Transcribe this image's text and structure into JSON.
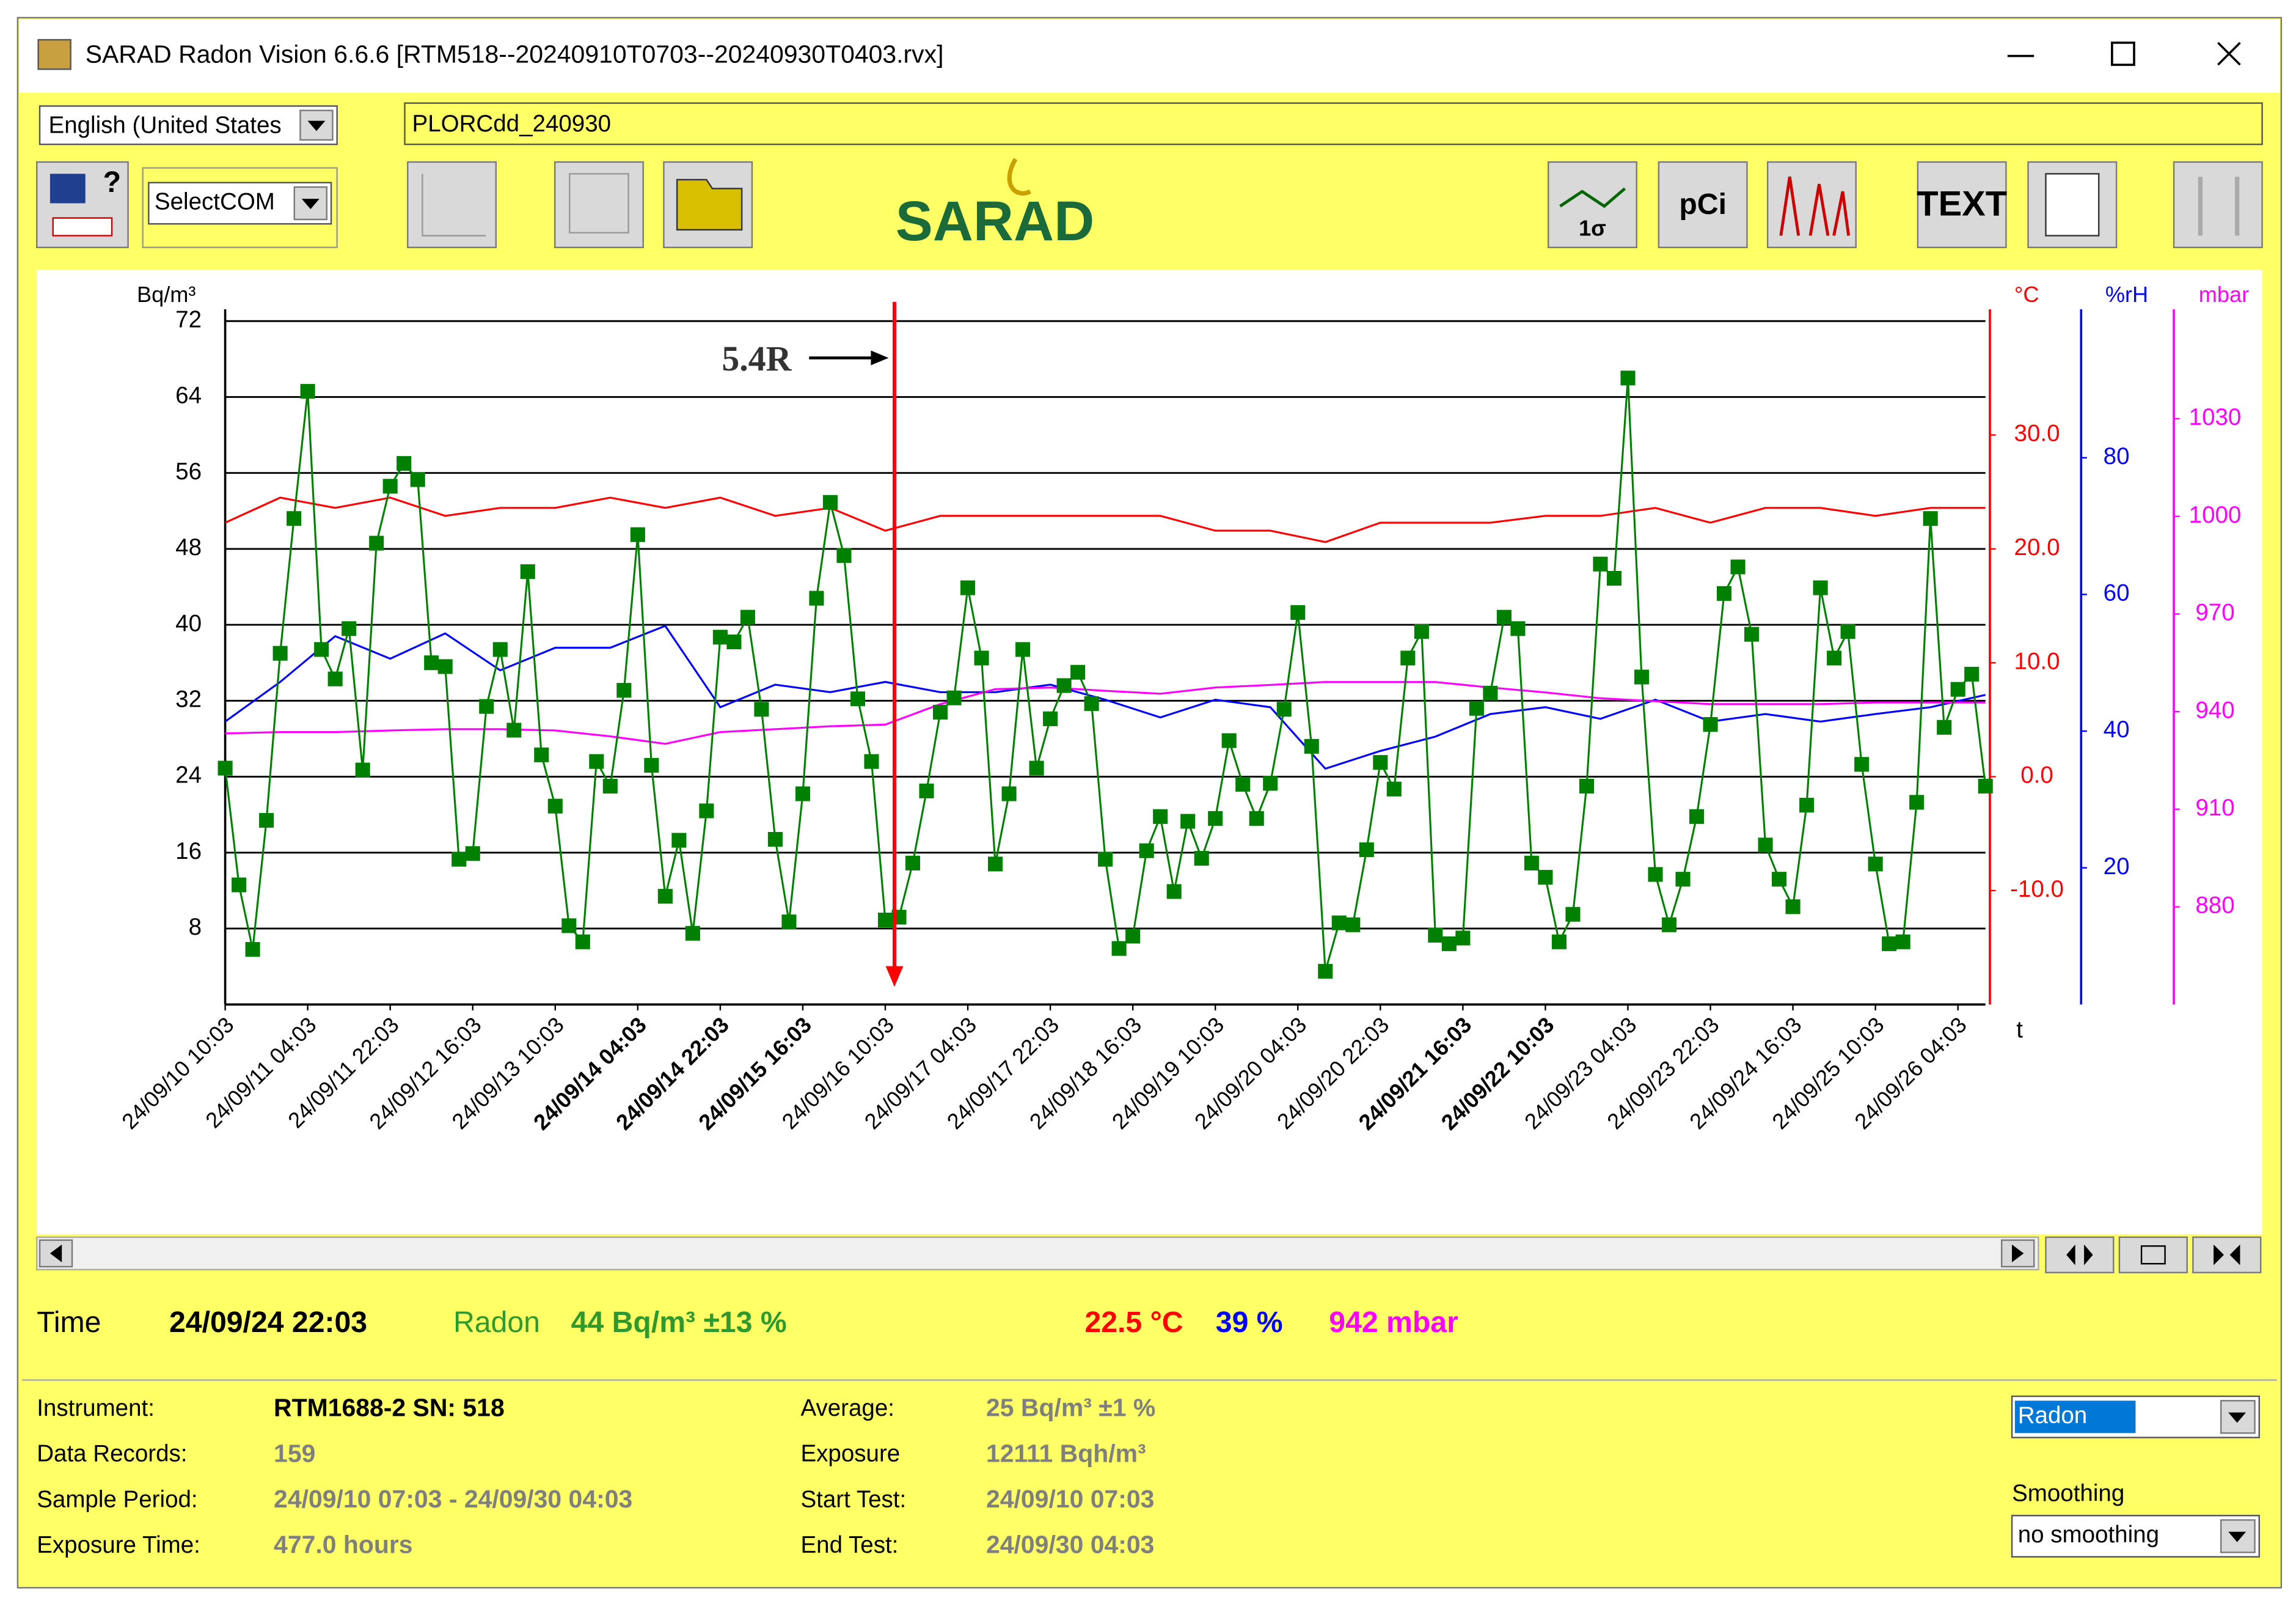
{
  "window": {
    "title": "SARAD Radon Vision 6.6.6 [RTM518--20240910T0703--20240930T0403.rvx]"
  },
  "toolbar": {
    "language": "English (United States",
    "file_name": "PLORCdd_240930",
    "com_port": "SelectCOM",
    "logo": "SARAD",
    "sigma_button": "1σ",
    "unit_button": "pCi",
    "text_button": "TEXT"
  },
  "chart_data": {
    "type": "line",
    "y_label": "Bq/m³",
    "y2_label": "°C",
    "y3_label": "%rH",
    "y4_label": "mbar",
    "x_label": "t",
    "xlim": [
      0,
      384
    ],
    "xticks": [
      {
        "value": 0,
        "label": "24/09/10 10:03"
      },
      {
        "value": 18,
        "label": "24/09/11 04:03"
      },
      {
        "value": 36,
        "label": "24/09/11 22:03"
      },
      {
        "value": 54,
        "label": "24/09/12 16:03"
      },
      {
        "value": 72,
        "label": "24/09/13 10:03"
      },
      {
        "value": 90,
        "label": "24/09/14 04:03"
      },
      {
        "value": 108,
        "label": "24/09/14 22:03"
      },
      {
        "value": 126,
        "label": "24/09/15 16:03"
      },
      {
        "value": 144,
        "label": "24/09/16 10:03"
      },
      {
        "value": 162,
        "label": "24/09/17 04:03"
      },
      {
        "value": 180,
        "label": "24/09/17 22:03"
      },
      {
        "value": 198,
        "label": "24/09/18 16:03"
      },
      {
        "value": 216,
        "label": "24/09/19 10:03"
      },
      {
        "value": 234,
        "label": "24/09/20 04:03"
      },
      {
        "value": 252,
        "label": "24/09/20 22:03"
      },
      {
        "value": 270,
        "label": "24/09/21 16:03"
      },
      {
        "value": 288,
        "label": "24/09/22 10:03"
      },
      {
        "value": 306,
        "label": "24/09/23 04:03"
      },
      {
        "value": 324,
        "label": "24/09/23 22:03"
      },
      {
        "value": 342,
        "label": "24/09/24 16:03"
      },
      {
        "value": 360,
        "label": "24/09/25 10:03"
      },
      {
        "value": 378,
        "label": "24/09/26 04:03"
      }
    ],
    "bold_xticks": [
      5,
      6,
      7,
      15,
      16
    ],
    "ylim": [
      0,
      72
    ],
    "yticks": [
      8,
      16,
      24,
      32,
      40,
      48,
      56,
      64,
      72
    ],
    "y2lim": [
      -20,
      40
    ],
    "y2ticks": [
      {
        "value": -10,
        "label": "-10.0"
      },
      {
        "value": 0,
        "label": "0.0"
      },
      {
        "value": 10,
        "label": "10.0"
      },
      {
        "value": 20,
        "label": "20.0"
      },
      {
        "value": 30,
        "label": "30.0"
      }
    ],
    "y3lim": [
      0,
      100
    ],
    "y3ticks": [
      20,
      40,
      60,
      80
    ],
    "y4lim": [
      850,
      1060
    ],
    "y4ticks": [
      880,
      910,
      940,
      970,
      1000,
      1030
    ],
    "grid": true,
    "annotation": {
      "text": "5.4R",
      "x": 146,
      "color": "#ff0000"
    },
    "series": [
      {
        "axis": "y",
        "color": "#008000",
        "marker": "square",
        "x": [
          0,
          3,
          6,
          9,
          12,
          15,
          18,
          21,
          24,
          27,
          30,
          33,
          36,
          39,
          42,
          45,
          48,
          51,
          54,
          57,
          60,
          63,
          66,
          69,
          72,
          75,
          78,
          81,
          84,
          87,
          90,
          93,
          96,
          99,
          102,
          105,
          108,
          111,
          114,
          117,
          120,
          123,
          126,
          129,
          132,
          135,
          138,
          141,
          144,
          147,
          150,
          153,
          156,
          159,
          162,
          165,
          168,
          171,
          174,
          177,
          180,
          183,
          186,
          189,
          192,
          195,
          198,
          201,
          204,
          207,
          210,
          213,
          216,
          219,
          222,
          225,
          228,
          231,
          234,
          237,
          240,
          243,
          246,
          249,
          252,
          255,
          258,
          261,
          264,
          267,
          270,
          273,
          276,
          279,
          282,
          285,
          288,
          291,
          294,
          297,
          300,
          303,
          306,
          309,
          312,
          315,
          318,
          321,
          324,
          327,
          330,
          333,
          336,
          339,
          342,
          345,
          348,
          351,
          354,
          357,
          360,
          363,
          366,
          369,
          372,
          375,
          378,
          381,
          384
        ],
        "values": [
          24.9,
          12.6,
          5.8,
          19.4,
          37,
          51.2,
          64.6,
          37.4,
          34.3,
          39.6,
          24.7,
          48.6,
          54.6,
          57,
          55.3,
          36,
          35.6,
          15.3,
          15.9,
          31.4,
          37.4,
          28.9,
          45.6,
          26.3,
          20.9,
          8.3,
          6.6,
          25.6,
          23,
          33.1,
          49.5,
          25.2,
          11.4,
          17.3,
          7.5,
          20.4,
          38.7,
          38.2,
          40.8,
          31.1,
          17.4,
          8.7,
          22.2,
          42.8,
          52.9,
          47.3,
          32.2,
          25.6,
          8.9,
          9.2,
          14.9,
          22.5,
          30.8,
          32.3,
          43.9,
          36.5,
          14.8,
          22.2,
          37.4,
          24.9,
          30.1,
          33.6,
          35,
          31.7,
          15.3,
          5.9,
          7.2,
          16.2,
          19.8,
          11.9,
          19.3,
          15.4,
          19.6,
          27.8,
          23.2,
          19.6,
          23.3,
          31.1,
          41.3,
          27.2,
          3.5,
          8.6,
          8.4,
          16.3,
          25.5,
          22.7,
          36.5,
          39.3,
          7.3,
          6.4,
          7,
          31.2,
          32.8,
          40.8,
          39.6,
          14.9,
          13.4,
          6.6,
          9.5,
          23,
          46.4,
          44.9,
          66,
          34.5,
          13.7,
          8.4,
          13.2,
          19.8,
          29.5,
          43.3,
          46.1,
          39,
          16.8,
          13.2,
          10.3,
          21,
          43.9,
          36.5,
          39.3,
          25.3,
          14.8,
          6.4,
          6.6,
          21.3,
          51.2,
          29.2,
          33.2,
          34.8,
          23
        ]
      },
      {
        "axis": "y2",
        "color": "#ff0000",
        "x": [
          0,
          12,
          24,
          36,
          48,
          60,
          72,
          84,
          96,
          108,
          120,
          132,
          144,
          156,
          168,
          180,
          192,
          204,
          216,
          228,
          240,
          252,
          264,
          276,
          288,
          300,
          312,
          324,
          336,
          348,
          360,
          372,
          384
        ],
        "values": [
          22.3,
          24.5,
          23.6,
          24.5,
          22.9,
          23.6,
          23.6,
          24.5,
          23.6,
          24.5,
          22.9,
          23.6,
          21.6,
          22.9,
          22.9,
          22.9,
          22.9,
          22.9,
          21.6,
          21.6,
          20.6,
          22.3,
          22.3,
          22.3,
          22.9,
          22.9,
          23.6,
          22.3,
          23.6,
          23.6,
          22.9,
          23.6,
          23.6
        ]
      },
      {
        "axis": "y3",
        "color": "#0000ff",
        "x": [
          0,
          12,
          24,
          36,
          48,
          60,
          72,
          84,
          96,
          108,
          120,
          132,
          144,
          156,
          168,
          180,
          192,
          204,
          216,
          228,
          240,
          252,
          264,
          276,
          288,
          300,
          312,
          324,
          336,
          348,
          360,
          372,
          384
        ],
        "values": [
          41.4,
          47.2,
          53.9,
          50.6,
          54.3,
          48.9,
          52.2,
          52.2,
          55.4,
          43.5,
          46.8,
          45.7,
          47.2,
          45.7,
          45.7,
          46.8,
          44.6,
          42,
          44.6,
          43.5,
          34.5,
          37.1,
          39.2,
          42.5,
          43.5,
          41.8,
          44.6,
          41.4,
          42.5,
          41.4,
          42.5,
          43.5,
          45.3
        ]
      },
      {
        "axis": "y4",
        "color": "#ff00ff",
        "x": [
          0,
          12,
          24,
          36,
          48,
          60,
          72,
          84,
          96,
          108,
          120,
          132,
          144,
          156,
          168,
          180,
          192,
          204,
          216,
          228,
          240,
          252,
          264,
          276,
          288,
          300,
          312,
          324,
          336,
          348,
          360,
          372,
          384
        ],
        "values": [
          933.3,
          933.7,
          933.7,
          934.2,
          934.6,
          934.6,
          934.2,
          932.4,
          930.1,
          933.7,
          934.6,
          935.5,
          936,
          942.3,
          946.9,
          947.4,
          946.4,
          945.5,
          947.4,
          948.2,
          949.1,
          949.1,
          949.1,
          947.4,
          945.9,
          944.1,
          943.2,
          942.3,
          942.3,
          942.3,
          942.8,
          942.8,
          942.8
        ]
      }
    ]
  },
  "status": {
    "time_label": "Time",
    "time": "24/09/24 22:03",
    "radon_label": "Radon",
    "radon": "44 Bq/m³ ±13 %",
    "temperature": "22.5 °C",
    "humidity": "39 %",
    "pressure": "942 mbar"
  },
  "info": {
    "left": [
      {
        "label": "Instrument:",
        "value": "RTM1688-2 SN: 518"
      },
      {
        "label": "Data Records:",
        "value": "159"
      },
      {
        "label": "Sample Period:",
        "value": "24/09/10 07:03 - 24/09/30 04:03"
      },
      {
        "label": "Exposure Time:",
        "value": "477.0 hours"
      }
    ],
    "right": [
      {
        "label": "Average:",
        "value": "25 Bq/m³ ±1 %"
      },
      {
        "label": "Exposure",
        "value": "12111 Bqh/m³"
      },
      {
        "label": "Start Test:",
        "value": "24/09/10 07:03"
      },
      {
        "label": "End Test:",
        "value": "24/09/30 04:03"
      }
    ]
  },
  "controls": {
    "display": "Radon",
    "smoothing_label": "Smoothing",
    "smoothing": "no smoothing"
  }
}
